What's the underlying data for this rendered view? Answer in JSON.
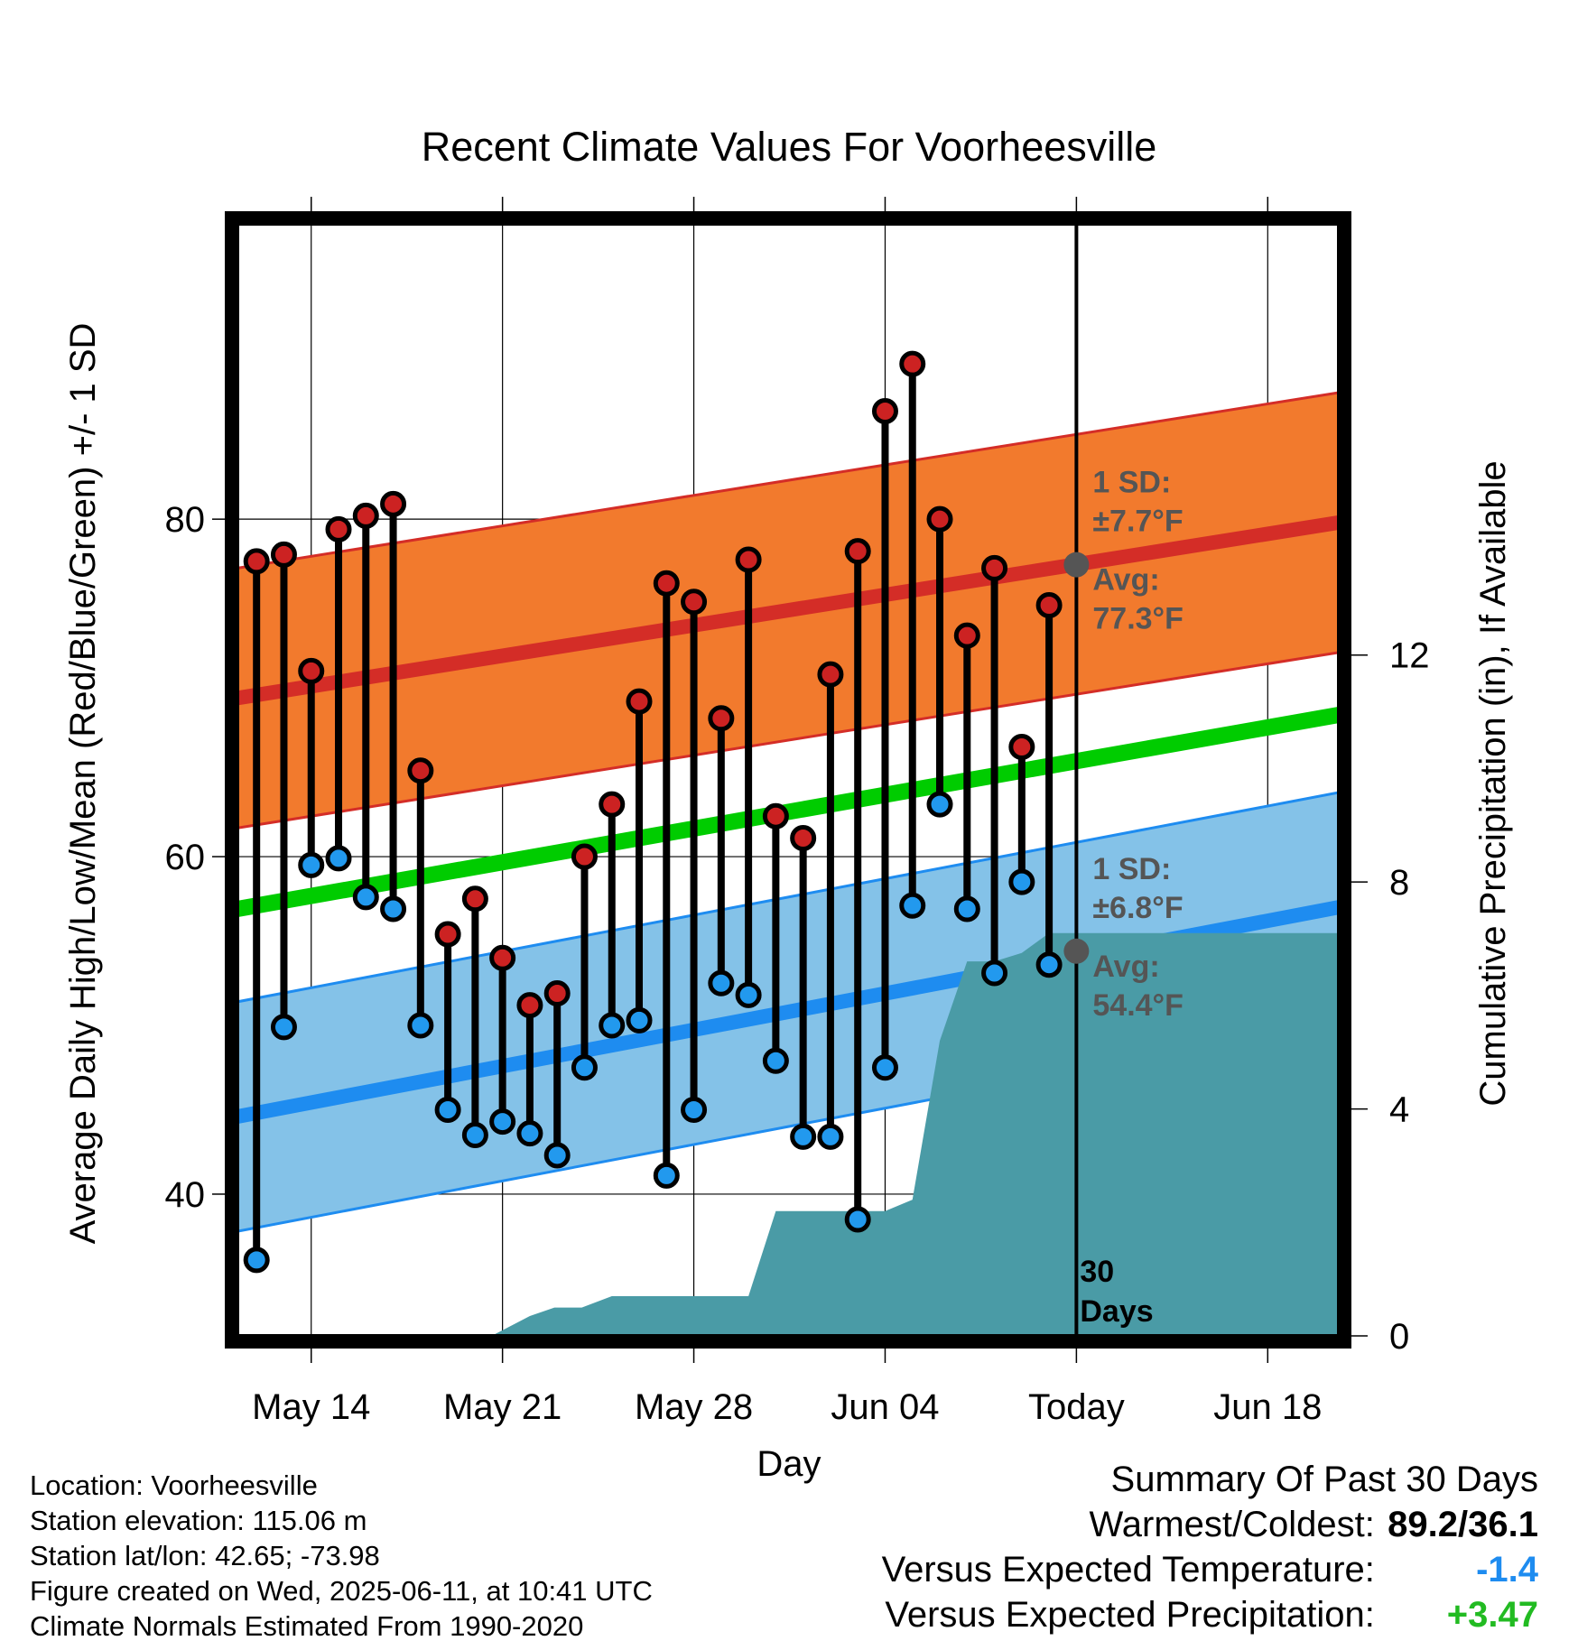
{
  "chart_data": {
    "type": "line",
    "title": "Recent Climate Values For Voorheesville",
    "xlabel": "Day",
    "ylabel": "Average Daily High/Low/Mean (Red/Blue/Green) +/- 1 SD",
    "y2label": "Cumulative Precipitation (in), If Available",
    "x_tick_labels": [
      "May 14",
      "May 21",
      "May 28",
      "Jun 04",
      "Today",
      "Jun 18"
    ],
    "x_tick_days": [
      14,
      21,
      28,
      35,
      42,
      49
    ],
    "x_days_label": "day number counted from May 1 (May 14 = 14, Jun 04 = 35, Today = Jun 11 = 42)",
    "xlim": [
      11.3,
      51.6
    ],
    "ylim": [
      31.6,
      97.5
    ],
    "yticks": [
      40,
      60,
      80
    ],
    "y2lim": [
      0,
      19.6
    ],
    "y2ticks": [
      0,
      4,
      8,
      12
    ],
    "grid": true,
    "daily": {
      "day": [
        12,
        13,
        14,
        15,
        16,
        17,
        18,
        19,
        20,
        21,
        22,
        23,
        24,
        25,
        26,
        27,
        28,
        29,
        30,
        31,
        32,
        33,
        34,
        35,
        36,
        37,
        38,
        39,
        40,
        41
      ],
      "high": [
        77.5,
        77.9,
        71.0,
        79.4,
        80.2,
        80.9,
        65.1,
        55.4,
        57.5,
        54.0,
        51.2,
        51.9,
        60.0,
        63.1,
        69.2,
        76.2,
        75.1,
        68.2,
        77.6,
        62.4,
        61.1,
        70.8,
        78.1,
        86.4,
        89.2,
        80.0,
        73.1,
        77.1,
        66.5,
        74.9
      ],
      "low": [
        36.1,
        49.9,
        59.5,
        59.9,
        57.6,
        56.9,
        50.0,
        45.0,
        43.5,
        44.3,
        43.6,
        42.3,
        47.5,
        50.0,
        50.3,
        41.1,
        45.0,
        52.5,
        51.8,
        47.9,
        43.4,
        43.4,
        38.5,
        47.5,
        57.1,
        63.1,
        56.9,
        53.1,
        58.5,
        53.6
      ]
    },
    "normal_high": {
      "start": 69.4,
      "end": 79.8,
      "sd": 7.7
    },
    "normal_low": {
      "start": 44.6,
      "end": 57.0,
      "sd": 6.8
    },
    "normal_mean": {
      "start": 56.9,
      "end": 68.4
    },
    "precipitation": {
      "day": [
        11.3,
        20.6,
        21.0,
        22.0,
        22.9,
        23.9,
        25.0,
        30.0,
        31.0,
        35.0,
        36.0,
        37.0,
        38.0,
        39.0,
        40.0,
        41.0,
        42.0,
        51.6
      ],
      "cumulative": [
        0.0,
        0.0,
        0.1,
        0.35,
        0.5,
        0.5,
        0.7,
        0.7,
        2.2,
        2.2,
        2.4,
        5.2,
        6.6,
        6.6,
        6.75,
        7.1,
        7.1,
        7.1
      ]
    },
    "annotations": {
      "high_sd_line1": "1 SD:",
      "high_sd_line2": "±7.7°F",
      "high_avg_line1": "Avg:",
      "high_avg_line2": "77.3°F",
      "low_sd_line1": "1 SD:",
      "low_sd_line2": "±6.8°F",
      "low_avg_line1": "Avg:",
      "low_avg_line2": "54.4°F",
      "today_high_avg": 77.3,
      "today_low_avg": 54.4,
      "days_line1": "30",
      "days_line2": "Days"
    },
    "colors": {
      "high_band": "#f27a2d",
      "high_line": "#d42d27",
      "low_band": "#84c2e8",
      "low_line": "#1e8cf0",
      "mean_line": "#00cc00",
      "precip": "#4a9ba6",
      "high_marker": "#cc2222",
      "low_marker": "#2299ee",
      "annotation": "#555555"
    }
  },
  "footer": {
    "location": "Location: Voorheesville",
    "elevation": "Station elevation: 115.06 m",
    "latlon": "Station lat/lon: 42.65; -73.98",
    "created": "Figure created on Wed, 2025-06-11, at 10:41 UTC",
    "normals": "Climate Normals Estimated From 1990-2020"
  },
  "summary": {
    "title": "Summary Of Past 30 Days",
    "warmest_coldest_label": "Warmest/Coldest:",
    "warmest_coldest_value": "89.2/36.1",
    "temp_label": "Versus Expected Temperature:",
    "temp_value": "-1.4",
    "temp_color": "#1e8cf0",
    "precip_label": "Versus Expected Precipitation:",
    "precip_value": "+3.47",
    "precip_color": "#22bb22"
  }
}
